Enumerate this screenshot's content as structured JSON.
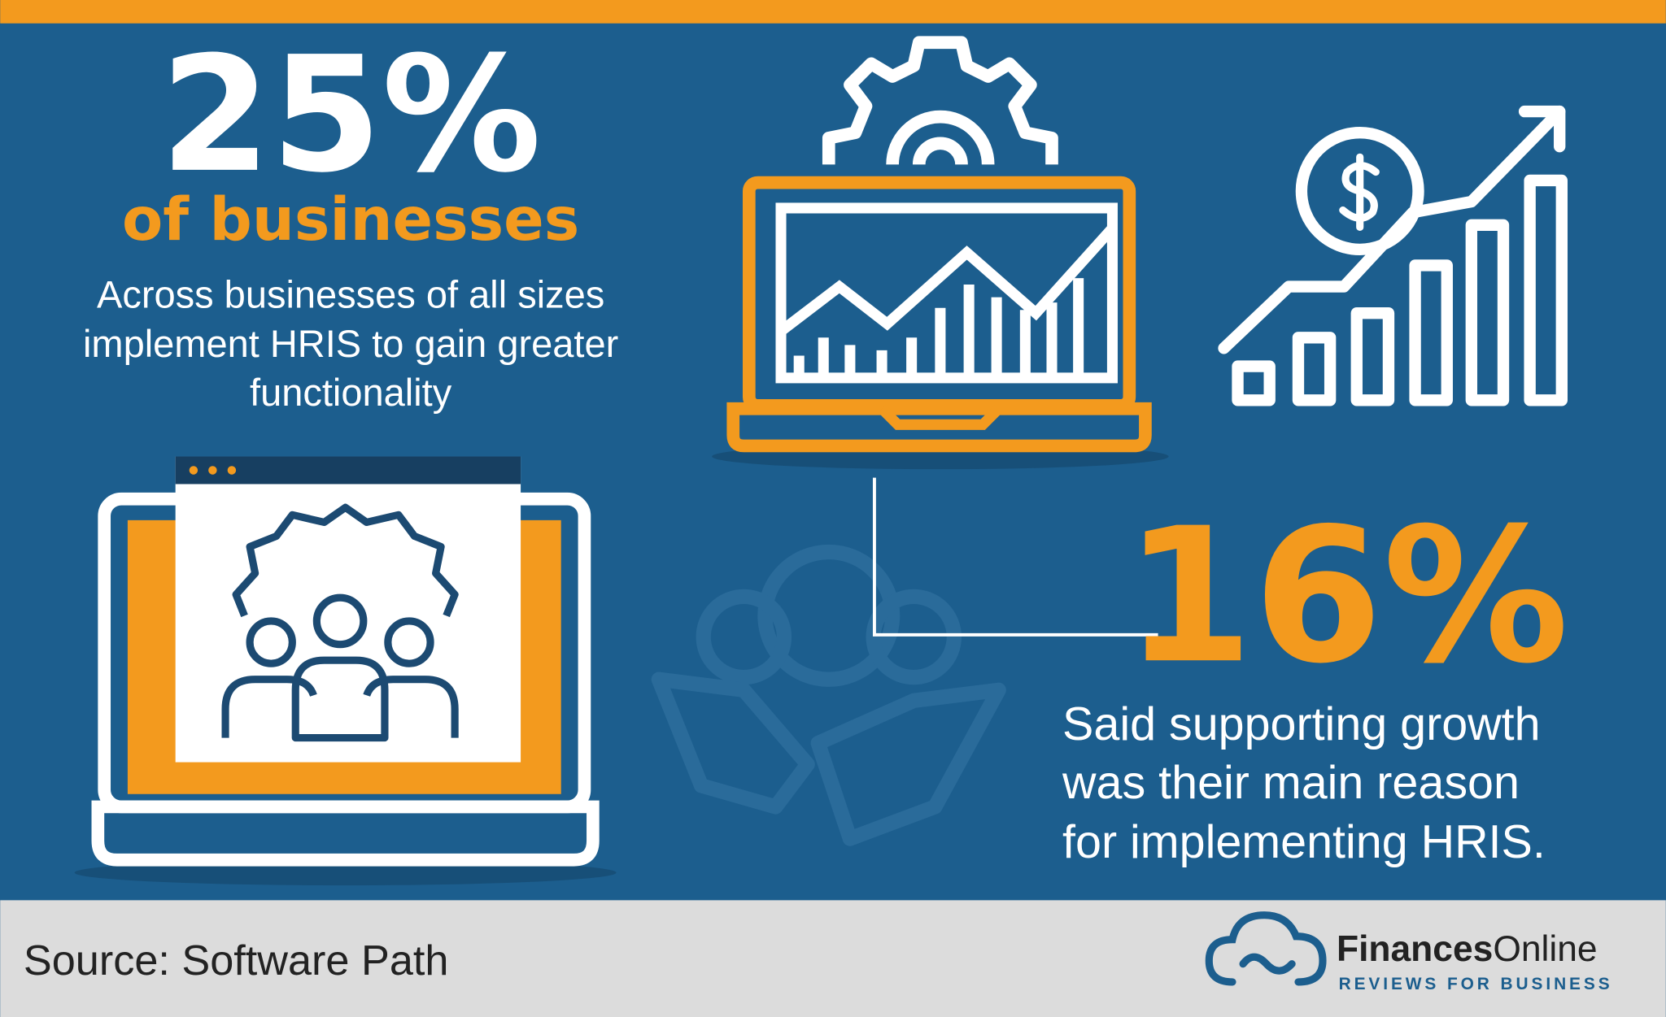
{
  "stat_primary": {
    "value": "25%",
    "subject": "of businesses",
    "description": [
      "Across businesses of all sizes",
      "implement HRIS to gain greater",
      "functionality"
    ]
  },
  "stat_secondary": {
    "value": "16%",
    "description": [
      "Said supporting growth",
      "was their main reason",
      "for implementing HRIS."
    ]
  },
  "footer": {
    "source": "Source: Software Path",
    "brand": {
      "name_bold": "Finances",
      "name_regular": "Online",
      "tagline": "REVIEWS FOR BUSINESS"
    }
  }
}
